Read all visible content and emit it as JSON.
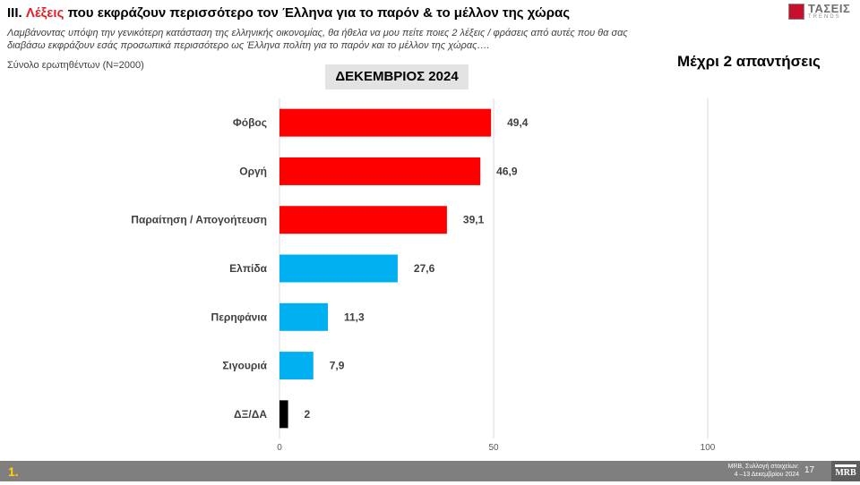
{
  "header": {
    "title_prefix": "III.",
    "title_highlight": "Λέξεις",
    "title_rest": "που εκφράζουν περισσότερο τον Έλληνα για το παρόν & το μέλλον της χώρας",
    "question": "Λαμβάνοντας υπόψη την γενικότερη κατάσταση της ελληνικής οικονομίας, θα ήθελα να μου πείτε ποιες 2  λέξεις / φράσεις από αυτές που θα σας διαβάσω εκφράζουν εσάς προσωπικά περισσότερο ως Έλληνα πολίτη για το παρόν και το μέλλον της χώρας….",
    "sample": "Σύνολο ερωτηθέντων (Ν=2000)",
    "period": "ΔΕΚΕΜΒΡΙΟΣ 2024",
    "answers_note": "Μέχρι 2 απαντήσεις"
  },
  "logo": {
    "name": "ΤΑΣΕΙΣ",
    "sub": "TRENDS"
  },
  "footer": {
    "slide_label": "1.",
    "source": "MRB, Συλλογή στοιχείων:\n4 –13 Δεκεμβρίου 2024",
    "page": "17",
    "brand": "MRB"
  },
  "colors": {
    "red": "#ff0000",
    "blue": "#00b0f0",
    "black": "#000000",
    "title_red": "#e31e24"
  },
  "chart_data": {
    "type": "bar",
    "orientation": "horizontal",
    "categories": [
      "Φόβος",
      "Οργή",
      "Παραίτηση / Απογοήτευση",
      "Ελπίδα",
      "Περηφάνια",
      "Σιγουριά",
      "ΔΞ/ΔΑ"
    ],
    "values": [
      49.4,
      46.9,
      39.1,
      27.6,
      11.3,
      7.9,
      2
    ],
    "value_labels": [
      "49,4",
      "46,9",
      "39,1",
      "27,6",
      "11,3",
      "7,9",
      "2"
    ],
    "bar_colors": [
      "#ff0000",
      "#ff0000",
      "#ff0000",
      "#00b0f0",
      "#00b0f0",
      "#00b0f0",
      "#000000"
    ],
    "xlim": [
      0,
      100
    ],
    "xticks": [
      0,
      50,
      100
    ],
    "grid": true,
    "legend": "none"
  }
}
